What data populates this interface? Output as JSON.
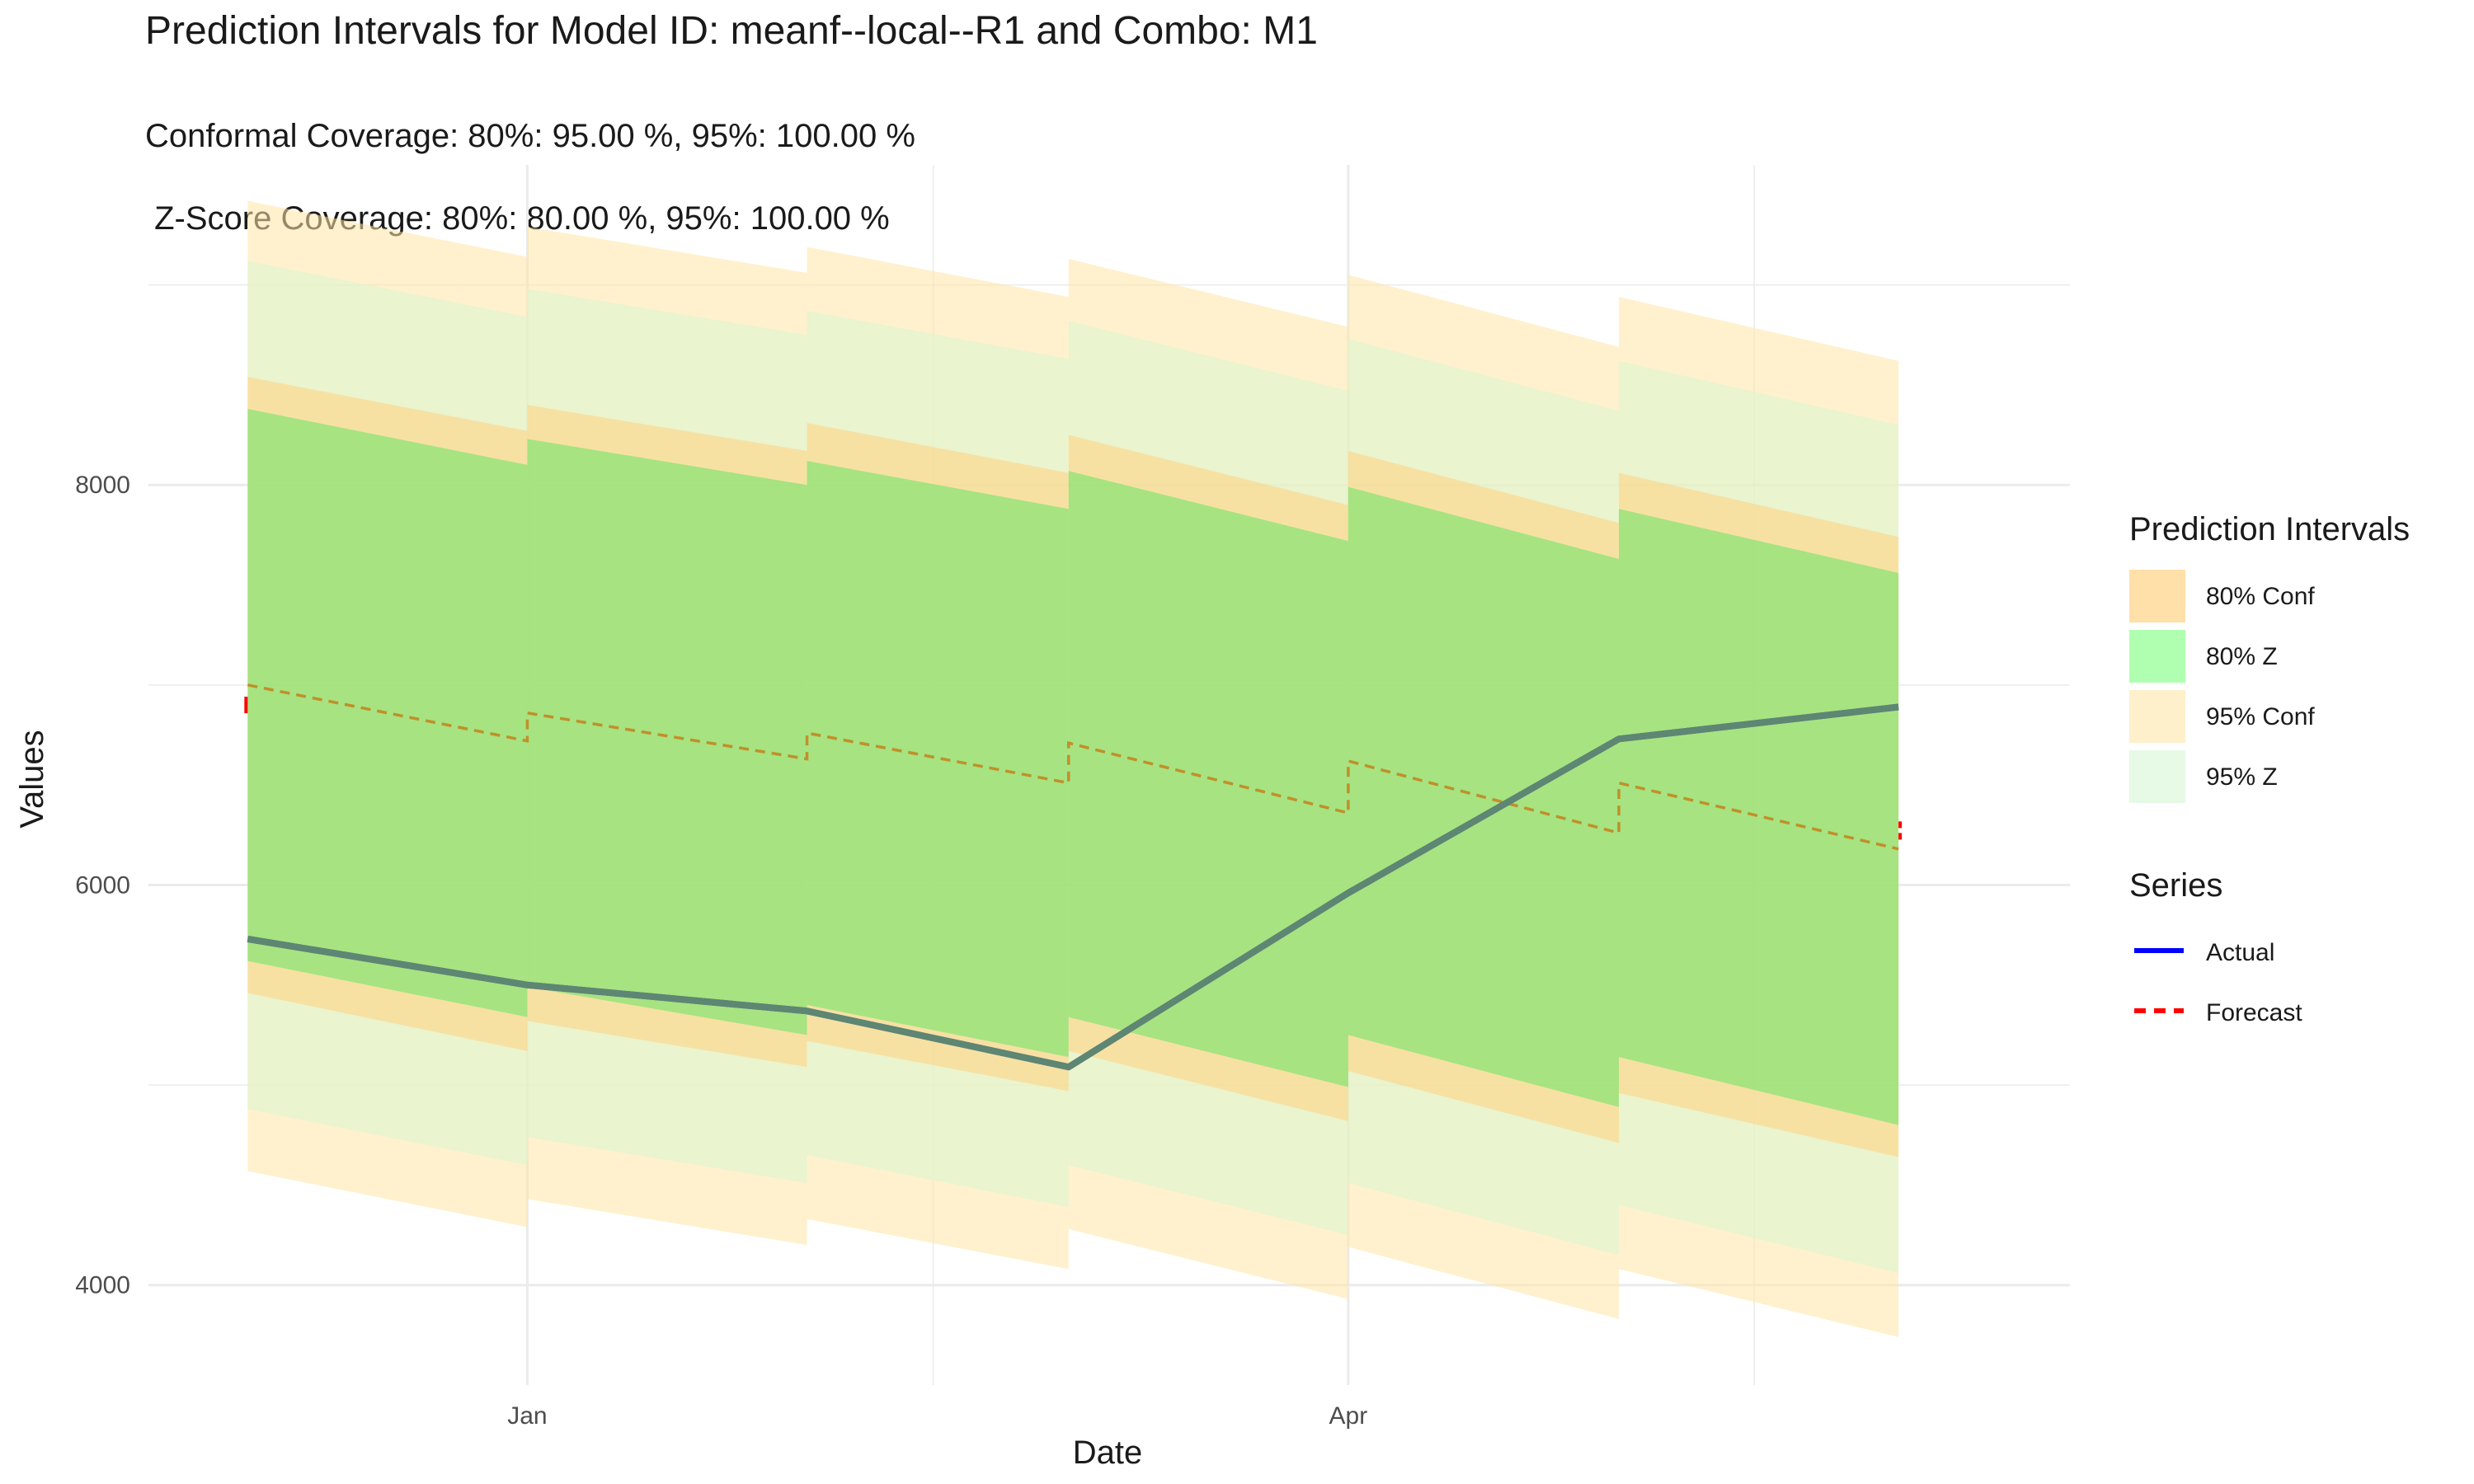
{
  "chart_data": {
    "type": "line",
    "title": "Prediction Intervals for Model ID: meanf--local--R1 and Combo: M1",
    "subtitle_lines": [
      "Conformal Coverage: 80%: 95.00 %, 95%: 100.00 %",
      " Z-Score Coverage: 80%: 80.00 %, 95%: 100.00 %"
    ],
    "xlabel": "Date",
    "ylabel": "Values",
    "x": [
      "2023-12-01",
      "2024-01-01",
      "2024-02-01",
      "2024-03-01",
      "2024-04-01",
      "2024-05-01",
      "2024-06-01"
    ],
    "x_ticks": [
      {
        "date": "2024-01-01",
        "label": "Jan"
      },
      {
        "date": "2024-04-01",
        "label": "Apr"
      }
    ],
    "y_ticks": [
      4000,
      6000,
      8000
    ],
    "ylim": [
      3500,
      9600
    ],
    "grid": true,
    "step_segments": [
      {
        "start": "2023-12-01",
        "end": "2024-01-01",
        "forecast": [
          7000,
          6720
        ],
        "z80": [
          [
            5620,
            8380
          ],
          [
            5340,
            8100
          ]
        ],
        "z95": [
          [
            4880,
            9120
          ],
          [
            4600,
            8840
          ]
        ],
        "conf80": [
          [
            5460,
            8540
          ],
          [
            5170,
            8270
          ]
        ],
        "conf95": [
          [
            4570,
            9420
          ],
          [
            4290,
            9140
          ]
        ]
      },
      {
        "start": "2024-01-01",
        "end": "2024-02-01",
        "forecast": [
          6860,
          6630
        ],
        "z80": [
          [
            5490,
            8230
          ],
          [
            5250,
            8000
          ]
        ],
        "z95": [
          [
            4740,
            8980
          ],
          [
            4510,
            8750
          ]
        ],
        "conf80": [
          [
            5320,
            8400
          ],
          [
            5090,
            8170
          ]
        ],
        "conf95": [
          [
            4430,
            9290
          ],
          [
            4200,
            9060
          ]
        ]
      },
      {
        "start": "2024-02-01",
        "end": "2024-03-01",
        "forecast": [
          6760,
          6510
        ],
        "z80": [
          [
            5400,
            8120
          ],
          [
            5140,
            7880
          ]
        ],
        "z95": [
          [
            4650,
            8870
          ],
          [
            4390,
            8630
          ]
        ],
        "conf80": [
          [
            5220,
            8310
          ],
          [
            4970,
            8060
          ]
        ],
        "conf95": [
          [
            4330,
            9190
          ],
          [
            4080,
            8940
          ]
        ]
      },
      {
        "start": "2024-03-01",
        "end": "2024-04-01",
        "forecast": [
          6710,
          6360
        ],
        "z80": [
          [
            5340,
            8070
          ],
          [
            4990,
            7720
          ]
        ],
        "z95": [
          [
            4600,
            8820
          ],
          [
            4250,
            8470
          ]
        ],
        "conf80": [
          [
            5170,
            8250
          ],
          [
            4820,
            7900
          ]
        ],
        "conf95": [
          [
            4280,
            9130
          ],
          [
            3930,
            8790
          ]
        ]
      },
      {
        "start": "2024-04-01",
        "end": "2024-05-01",
        "forecast": [
          6620,
          6260
        ],
        "z80": [
          [
            5250,
            7990
          ],
          [
            4890,
            7630
          ]
        ],
        "z95": [
          [
            4510,
            8730
          ],
          [
            4150,
            8370
          ]
        ],
        "conf80": [
          [
            5070,
            8170
          ],
          [
            4710,
            7810
          ]
        ],
        "conf95": [
          [
            4190,
            9050
          ],
          [
            3830,
            8690
          ]
        ]
      },
      {
        "start": "2024-05-01",
        "end": "2024-06-01",
        "forecast": [
          6510,
          6180
        ],
        "z80": [
          [
            5140,
            7880
          ],
          [
            4800,
            7560
          ]
        ],
        "z95": [
          [
            4400,
            8620
          ],
          [
            4060,
            8300
          ]
        ],
        "conf80": [
          [
            4960,
            8060
          ],
          [
            4640,
            7740
          ]
        ],
        "conf95": [
          [
            4080,
            8940
          ],
          [
            3740,
            8620
          ]
        ]
      }
    ],
    "series": [
      {
        "name": "Actual",
        "values": [
          5730,
          5500,
          5370,
          5090,
          5960,
          6730,
          6890
        ],
        "color": "#0000ff"
      },
      {
        "name": "Forecast",
        "values": [
          6900,
          null,
          null,
          null,
          null,
          null,
          6260
        ],
        "color": "#ff0000",
        "dash": "dashed"
      }
    ],
    "legend": {
      "position": "right",
      "groups": [
        {
          "title": "Prediction Intervals",
          "items": [
            {
              "label": "80% Conf",
              "color": "#ffe0a8"
            },
            {
              "label": "80% Z",
              "color": "#b0ffb0"
            },
            {
              "label": "95% Conf",
              "color": "#fff0cc"
            },
            {
              "label": "95% Z",
              "color": "#e6fae6"
            }
          ]
        },
        {
          "title": "Series",
          "items": [
            {
              "label": "Actual",
              "color": "#0000ff",
              "style": "solid"
            },
            {
              "label": "Forecast",
              "color": "#ff0000",
              "style": "dashed"
            }
          ]
        }
      ]
    },
    "fill_colors": {
      "conf80": "#ffd27f",
      "z80": "#66e666",
      "conf95": "#ffe6a6",
      "z95": "#d9f5d0",
      "overlap_line": "#5f8f6a"
    }
  }
}
